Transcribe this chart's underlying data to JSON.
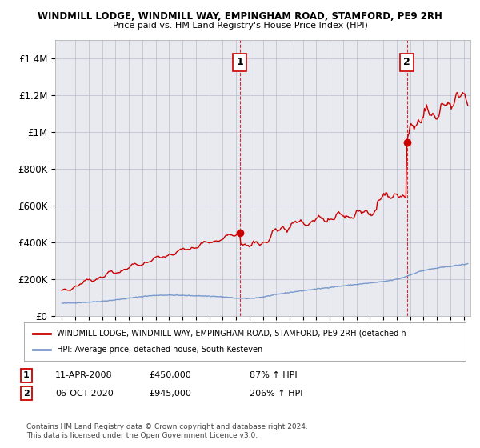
{
  "title": "WINDMILL LODGE, WINDMILL WAY, EMPINGHAM ROAD, STAMFORD, PE9 2RH",
  "subtitle": "Price paid vs. HM Land Registry's House Price Index (HPI)",
  "ylim": [
    0,
    1500000
  ],
  "yticks": [
    0,
    200000,
    400000,
    600000,
    800000,
    1000000,
    1200000,
    1400000
  ],
  "ytick_labels": [
    "£0",
    "£200K",
    "£400K",
    "£600K",
    "£800K",
    "£1M",
    "£1.2M",
    "£1.4M"
  ],
  "sale1_date": 2008.28,
  "sale1_price": 450000,
  "sale2_date": 2020.76,
  "sale2_price": 945000,
  "hpi_color": "#7799cc",
  "price_color": "#cc0000",
  "marker_color": "#cc0000",
  "grid_color": "#bbbbcc",
  "bg_color": "#ffffff",
  "plot_bg_color": "#e8eaf0",
  "legend_text_red": "WINDMILL LODGE, WINDMILL WAY, EMPINGHAM ROAD, STAMFORD, PE9 2RH (detached h",
  "legend_text_blue": "HPI: Average price, detached house, South Kesteven",
  "footer": "Contains HM Land Registry data © Crown copyright and database right 2024.\nThis data is licensed under the Open Government Licence v3.0.",
  "xmin": 1994.5,
  "xmax": 2025.5
}
